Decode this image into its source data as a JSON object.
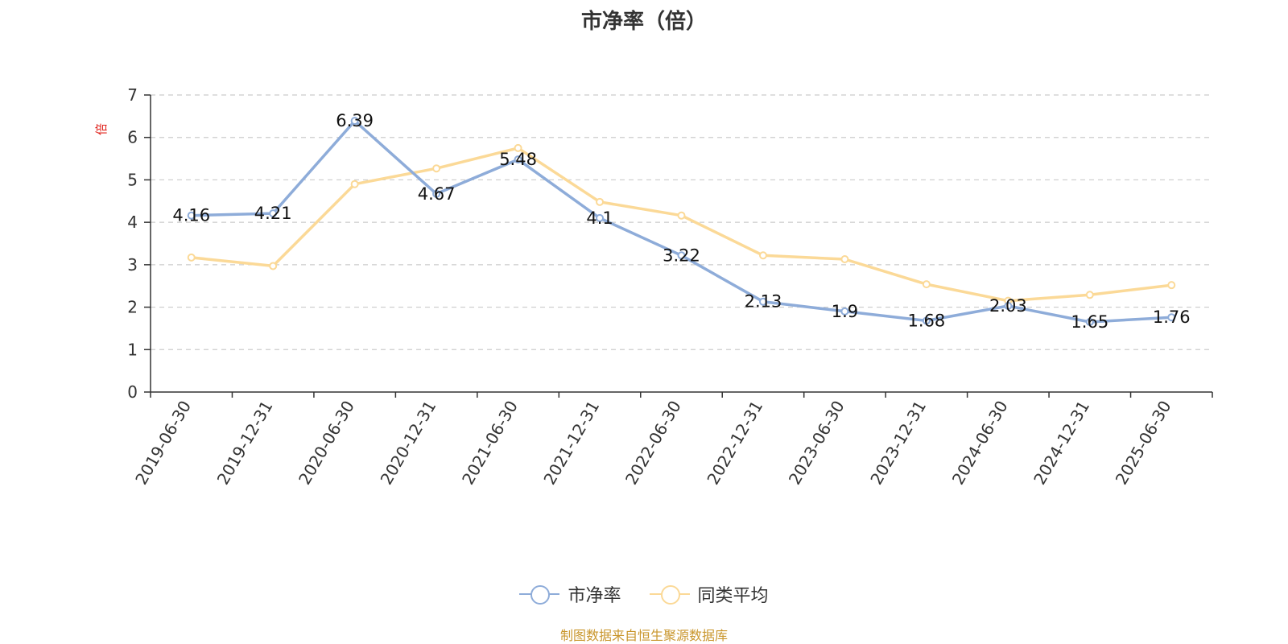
{
  "chart_data": {
    "type": "line",
    "title": "市净率（倍）",
    "ylabel": "倍",
    "ylim": [
      0,
      7
    ],
    "yticks": [
      "0",
      "1",
      "2",
      "3",
      "4",
      "5",
      "6",
      "7"
    ],
    "grid": true,
    "legend_position": "bottom",
    "categories": [
      "2019-06-30",
      "2019-12-31",
      "2020-06-30",
      "2020-12-31",
      "2021-06-30",
      "2021-12-31",
      "2022-06-30",
      "2022-12-31",
      "2023-06-30",
      "2023-12-31",
      "2024-06-30",
      "2024-12-31",
      "2025-06-30"
    ],
    "series": [
      {
        "name": "市净率",
        "color": "#8eacd9",
        "values": [
          4.16,
          4.21,
          6.39,
          4.67,
          5.48,
          4.1,
          3.22,
          2.13,
          1.9,
          1.68,
          2.03,
          1.65,
          1.76
        ],
        "labels": [
          "4.16",
          "4.21",
          "6.39",
          "4.67",
          "5.48",
          "4.1",
          "3.22",
          "2.13",
          "1.9",
          "1.68",
          "2.03",
          "1.65",
          "1.76"
        ]
      },
      {
        "name": "同类平均",
        "color": "#fbd997",
        "values": [
          3.17,
          2.97,
          4.9,
          5.27,
          5.75,
          4.48,
          4.16,
          3.22,
          3.13,
          2.54,
          2.15,
          2.29,
          2.52
        ]
      }
    ]
  },
  "source_note": "制图数据来自恒生聚源数据库"
}
